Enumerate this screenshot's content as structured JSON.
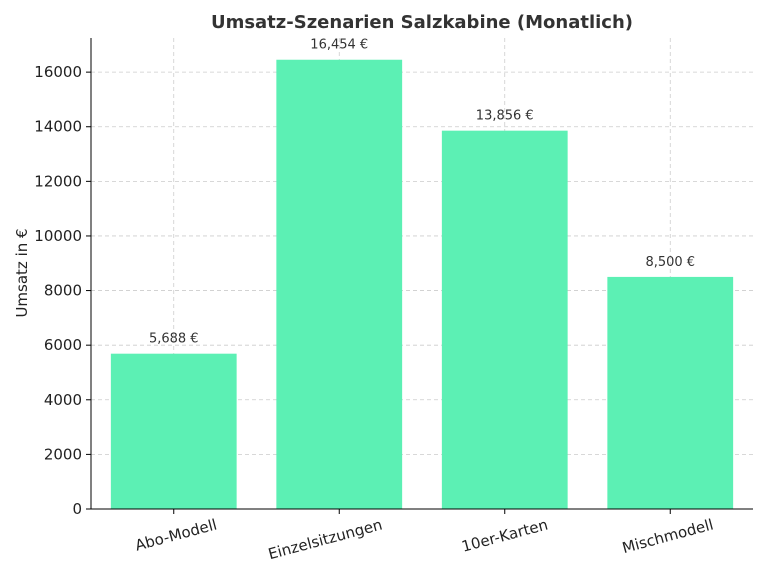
{
  "chart_data": {
    "type": "bar",
    "title": "Umsatz-Szenarien Salzkabine (Monatlich)",
    "xlabel": "",
    "ylabel": "Umsatz in €",
    "categories": [
      "Abo-Modell",
      "Einzelsitzungen",
      "10er-Karten",
      "Mischmodell"
    ],
    "values": [
      5688,
      16454,
      13856,
      8500
    ],
    "value_labels": [
      "5,688 €",
      "16,454 €",
      "13,856 €",
      "8,500 €"
    ],
    "ylim": [
      0,
      17250
    ],
    "yticks": [
      0,
      2000,
      4000,
      6000,
      8000,
      10000,
      12000,
      14000,
      16000
    ],
    "ytick_labels": [
      "0",
      "2000",
      "4000",
      "6000",
      "8000",
      "10000",
      "12000",
      "14000",
      "16000"
    ],
    "grid": true,
    "bar_color": "#5cf0b4",
    "title_color": "#333333"
  }
}
